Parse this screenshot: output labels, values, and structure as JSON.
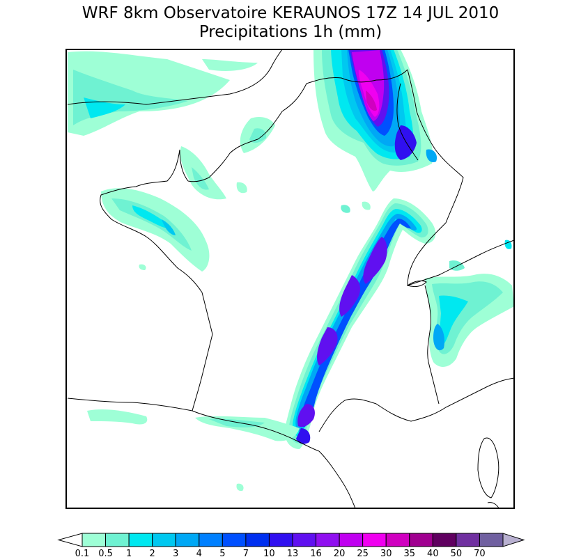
{
  "title": {
    "line1": "WRF 8km Observatoire KERAUNOS 17Z 14 JUL 2010",
    "line2": "Precipitations 1h (mm)"
  },
  "legend": {
    "thresholds": [
      "0.1",
      "0.5",
      "1",
      "2",
      "3",
      "4",
      "5",
      "7",
      "10",
      "13",
      "16",
      "20",
      "25",
      "30",
      "35",
      "40",
      "50",
      "70"
    ],
    "colors": [
      "#9effd6",
      "#6ff2d2",
      "#00e8f0",
      "#00c8f0",
      "#00a8f5",
      "#0080ff",
      "#0050ff",
      "#0030f0",
      "#3010f0",
      "#6010f0",
      "#9010f0",
      "#c000f0",
      "#f000f0",
      "#d000c0",
      "#a00090",
      "#600060",
      "#7030a0",
      "#7060a0"
    ],
    "under_arrow_color": "#ffffff",
    "over_arrow_color": "#b8b0d0"
  },
  "colors": {
    "frame": "#000000",
    "coastline": "#000000",
    "background": "#ffffff"
  }
}
